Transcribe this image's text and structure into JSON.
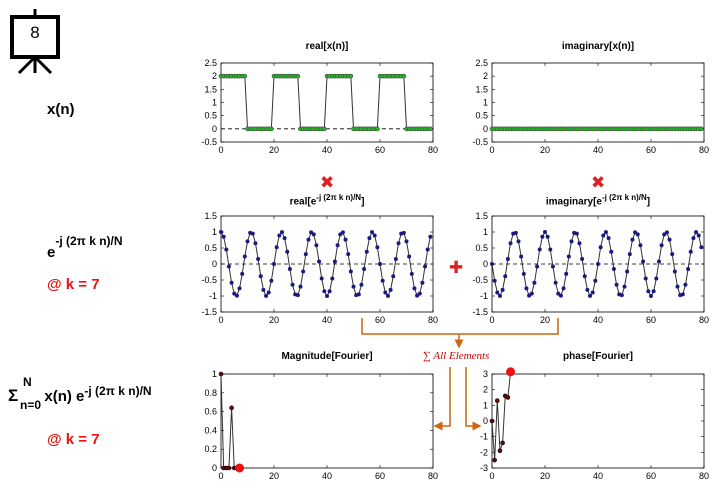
{
  "slide": {
    "number": "8"
  },
  "labels": {
    "xn": "x(n)",
    "kernel_base": "e",
    "kernel_exp": "-j (2π k n)/N",
    "k_note1": "@ k = 7",
    "sum_sigma": "Σ",
    "sum_upper": "N",
    "sum_lower": "n=0",
    "sum_body": " x(n) e",
    "sum_exp": "-j (2π k n)/N",
    "k_note2": "@ k = 7"
  },
  "operators": {
    "multiply1": "✖",
    "multiply2": "✖",
    "plus": "✚",
    "sum_all": "∑ All Elements"
  },
  "colors": {
    "green": "#22bb22",
    "navy": "#1a1a80",
    "red": "#ee1111",
    "darkred": "#6b0a0a",
    "orange": "#cc6611"
  },
  "plots": {
    "real_x": {
      "title": "real[x(n)]",
      "xlim": [
        0,
        80
      ],
      "ylim": [
        -0.5,
        2.5
      ],
      "yticks": [
        "2.5",
        "2",
        "1.5",
        "1",
        "0.5",
        "0",
        "-0.5"
      ],
      "xticks": [
        "0",
        "20",
        "40",
        "60",
        "80"
      ]
    },
    "imag_x": {
      "title": "imaginary[x(n)]",
      "xlim": [
        0,
        80
      ],
      "ylim": [
        -0.5,
        2.5
      ],
      "yticks": [
        "2.5",
        "2",
        "1.5",
        "1",
        "0.5",
        "0",
        "-0.5"
      ],
      "xticks": [
        "0",
        "20",
        "40",
        "60",
        "80"
      ]
    },
    "real_exp": {
      "title_base": "real[e",
      "title_exp": "-j (2π k n)/N",
      "title_end": "]",
      "xlim": [
        0,
        80
      ],
      "ylim": [
        -1.5,
        1.5
      ],
      "yticks": [
        "1.5",
        "1",
        "0.5",
        "0",
        "-0.5",
        "-1",
        "-1.5"
      ],
      "xticks": [
        "0",
        "20",
        "40",
        "60",
        "80"
      ]
    },
    "imag_exp": {
      "title_base": "imaginary[e",
      "title_exp": "-j (2π k n)/N",
      "title_end": "]",
      "xlim": [
        0,
        80
      ],
      "ylim": [
        -1.5,
        1.5
      ],
      "yticks": [
        "1.5",
        "1",
        "0.5",
        "0",
        "-0.5",
        "-1",
        "-1.5"
      ],
      "xticks": [
        "0",
        "20",
        "40",
        "60",
        "80"
      ]
    },
    "magnitude": {
      "title": "Magnitude[Fourier]",
      "xlim": [
        0,
        80
      ],
      "ylim": [
        0,
        1
      ],
      "yticks": [
        "1",
        "0.8",
        "0.6",
        "0.4",
        "0.2",
        "0"
      ],
      "xticks": [
        "0",
        "20",
        "40",
        "60",
        "80"
      ]
    },
    "phase": {
      "title": "phase[Fourier]",
      "xlim": [
        0,
        80
      ],
      "ylim": [
        -3,
        3
      ],
      "yticks": [
        "3",
        "2",
        "1",
        "0",
        "-1",
        "-2",
        "-3"
      ],
      "xticks": [
        "0",
        "20",
        "40",
        "60",
        "80"
      ]
    }
  },
  "chart_data": [
    {
      "type": "line",
      "title": "real[x(n)]",
      "n": [
        0,
        80
      ],
      "signal": "square wave",
      "high": 2,
      "low": 0,
      "period": 20,
      "high_length": 10,
      "xlim": [
        0,
        80
      ],
      "ylim": [
        -0.5,
        2.5
      ]
    },
    {
      "type": "line",
      "title": "imaginary[x(n)]",
      "n": [
        0,
        80
      ],
      "values_constant": 0,
      "xlim": [
        0,
        80
      ],
      "ylim": [
        -0.5,
        2.5
      ]
    },
    {
      "type": "line",
      "title": "real[e^-j (2π k n)/N]",
      "k": 7,
      "N": 80,
      "function": "cos(2πkn/N)",
      "xlim": [
        0,
        80
      ],
      "ylim": [
        -1.5,
        1.5
      ]
    },
    {
      "type": "line",
      "title": "imaginary[e^-j (2π k n)/N]",
      "k": 7,
      "N": 80,
      "function": "-sin(2πkn/N)",
      "xlim": [
        0,
        80
      ],
      "ylim": [
        -1.5,
        1.5
      ]
    },
    {
      "type": "line",
      "title": "Magnitude[Fourier]",
      "x": [
        0,
        1,
        2,
        3,
        4,
        5,
        6,
        7
      ],
      "values": [
        1,
        0,
        0,
        0,
        0.64,
        0,
        0,
        0
      ],
      "highlight_k": 7,
      "xlim": [
        0,
        80
      ],
      "ylim": [
        0,
        1
      ]
    },
    {
      "type": "line",
      "title": "phase[Fourier]",
      "x": [
        0,
        1,
        2,
        3,
        4,
        5,
        6,
        7
      ],
      "values": [
        0,
        -2.5,
        1.3,
        -1.9,
        -1.4,
        1.6,
        1.5,
        3.14
      ],
      "highlight_k": 7,
      "xlim": [
        0,
        80
      ],
      "ylim": [
        -3,
        3
      ]
    }
  ]
}
